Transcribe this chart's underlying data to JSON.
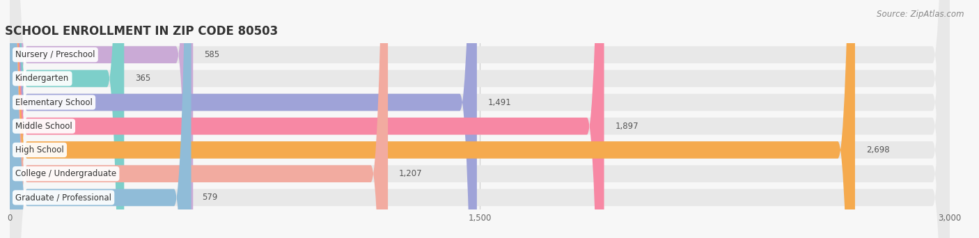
{
  "title": "SCHOOL ENROLLMENT IN ZIP CODE 80503",
  "source": "Source: ZipAtlas.com",
  "categories": [
    "Nursery / Preschool",
    "Kindergarten",
    "Elementary School",
    "Middle School",
    "High School",
    "College / Undergraduate",
    "Graduate / Professional"
  ],
  "values": [
    585,
    365,
    1491,
    1897,
    2698,
    1207,
    579
  ],
  "bar_colors": [
    "#caaad6",
    "#7dcfca",
    "#9fa3d8",
    "#f788a4",
    "#f5aa4e",
    "#f2aba0",
    "#90bcd8"
  ],
  "bar_bg_color": "#e8e8e8",
  "background_color": "#f7f7f7",
  "xlim_max": 3000,
  "xticks": [
    0,
    1500,
    3000
  ],
  "title_fontsize": 12,
  "label_fontsize": 8.5,
  "value_fontsize": 8.5,
  "source_fontsize": 8.5,
  "bar_height": 0.72,
  "bar_gap": 0.28
}
